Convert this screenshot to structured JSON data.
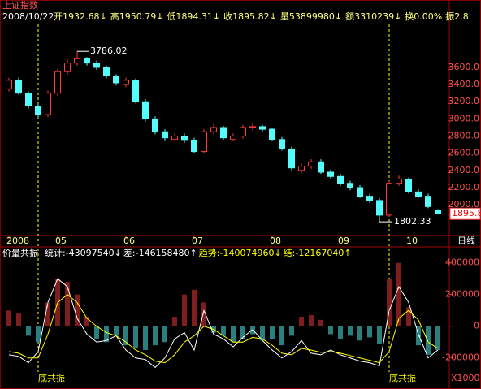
{
  "chart_data": [
    {
      "type": "candlestick",
      "title": "上证指数",
      "date": "2008/10/22",
      "info": [
        "开1932.68↓",
        "高1950.79↓",
        "低1894.31↓",
        "收1895.82↓",
        "量53899980↓",
        "额3310239↓",
        "换0.00%",
        "振2.8"
      ],
      "categories": [
        "2008",
        null,
        null,
        null,
        null,
        "05",
        null,
        null,
        null,
        null,
        null,
        null,
        "06",
        null,
        null,
        null,
        null,
        null,
        null,
        "07",
        null,
        null,
        null,
        null,
        null,
        null,
        null,
        "08",
        null,
        null,
        null,
        null,
        null,
        null,
        "09",
        null,
        null,
        null,
        null,
        null,
        null,
        "10",
        null,
        null,
        null
      ],
      "open": [
        3350,
        3450,
        3300,
        3150,
        3050,
        3300,
        3550,
        3650,
        3700,
        3650,
        3600,
        3500,
        3400,
        3450,
        3200,
        3000,
        2850,
        2760,
        2800,
        2750,
        2620,
        2850,
        2900,
        2760,
        2800,
        2900,
        2910,
        2880,
        2760,
        2650,
        2400,
        2450,
        2500,
        2380,
        2330,
        2250,
        2200,
        2100,
        2050,
        1880,
        2250,
        2300,
        2150,
        2100,
        1932.68
      ],
      "high": [
        3480,
        3480,
        3320,
        3180,
        3330,
        3580,
        3690,
        3786.02,
        3720,
        3680,
        3620,
        3520,
        3480,
        3470,
        3230,
        3030,
        2880,
        2830,
        2830,
        2780,
        2880,
        2940,
        2920,
        2830,
        2930,
        2950,
        2930,
        2900,
        2790,
        2680,
        2480,
        2530,
        2530,
        2410,
        2360,
        2280,
        2230,
        2130,
        2080,
        2280,
        2340,
        2320,
        2180,
        2130,
        1950.79
      ],
      "low": [
        3320,
        3280,
        3120,
        3010,
        3020,
        3270,
        3520,
        3620,
        3620,
        3570,
        3470,
        3390,
        3370,
        3180,
        2970,
        2820,
        2740,
        2740,
        2720,
        2600,
        2600,
        2820,
        2750,
        2740,
        2770,
        2870,
        2850,
        2740,
        2630,
        2400,
        2370,
        2420,
        2360,
        2300,
        2220,
        2170,
        2080,
        2020,
        1802.33,
        1860,
        2220,
        2130,
        2080,
        1960,
        1894.31
      ],
      "close": [
        3450,
        3300,
        3150,
        3050,
        3300,
        3550,
        3650,
        3700,
        3650,
        3600,
        3500,
        3420,
        3450,
        3200,
        3000,
        2850,
        2780,
        2800,
        2750,
        2620,
        2850,
        2900,
        2780,
        2800,
        2900,
        2910,
        2880,
        2760,
        2650,
        2430,
        2450,
        2500,
        2380,
        2330,
        2250,
        2200,
        2100,
        2050,
        1880,
        2250,
        2300,
        2150,
        2100,
        1980,
        1895.82
      ],
      "up_color": "#ff3c3c",
      "down_color": "#54fcfc",
      "max_label": 3786.02,
      "min_label": 1802.33,
      "last_price": {
        "value": 1895.82,
        "label": "1895.8"
      },
      "period": "日线",
      "ylim": [
        1690,
        4100
      ],
      "yticks": [
        {
          "value": 2000,
          "label": "2000.0"
        },
        {
          "value": 2200,
          "label": "2200.0"
        },
        {
          "value": 2400,
          "label": "2400.0"
        },
        {
          "value": 2600,
          "label": "2600.0"
        },
        {
          "value": 2800,
          "label": "2800.0"
        },
        {
          "value": 3000,
          "label": "3000.0"
        },
        {
          "value": 3200,
          "label": "3200.0"
        },
        {
          "value": 3400,
          "label": "3400.0"
        },
        {
          "value": 3600,
          "label": "3600.0"
        }
      ]
    },
    {
      "type": "bar_line",
      "title": "价量共振",
      "legend": [
        {
          "text": "统计:-43097540↓",
          "color": "#ffffff"
        },
        {
          "text": "差:-146158480↑",
          "color": "#ffffff"
        },
        {
          "text": "趋势:-140074960↓",
          "color": "#ffff00"
        },
        {
          "text": "结:-12167040↑",
          "color": "#ffff00"
        }
      ],
      "bars": [
        100000,
        80000,
        -60000,
        -100000,
        150000,
        300000,
        280000,
        200000,
        60000,
        -80000,
        -100000,
        -60000,
        -120000,
        -140000,
        -150000,
        -120000,
        -100000,
        60000,
        200000,
        230000,
        150000,
        -40000,
        -60000,
        -100000,
        -80000,
        -50000,
        -90000,
        -80000,
        -120000,
        -60000,
        60000,
        70000,
        40000,
        -50000,
        -80000,
        -60000,
        -90000,
        -70000,
        -110000,
        300000,
        400000,
        120000,
        -120000,
        -180000,
        -150000
      ],
      "bar_up_color": "#ff3c3c",
      "bar_down_color": "#54fcfc",
      "series": [
        {
          "color": "#ffffff",
          "values": [
            -180000,
            -190000,
            -230000,
            -160000,
            150000,
            300000,
            250000,
            50000,
            -50000,
            -100000,
            -90000,
            -60000,
            -150000,
            -200000,
            -210000,
            -260000,
            -200000,
            -80000,
            -40000,
            -150000,
            100000,
            -50000,
            -80000,
            -130000,
            -70000,
            -20000,
            -90000,
            -150000,
            -200000,
            -160000,
            -90000,
            -170000,
            -180000,
            -150000,
            -180000,
            -200000,
            -220000,
            -230000,
            -250000,
            100000,
            250000,
            150000,
            -50000,
            -200000,
            -150000
          ]
        },
        {
          "color": "#ffff00",
          "values": [
            -160000,
            -170000,
            -200000,
            -200000,
            -50000,
            150000,
            200000,
            150000,
            50000,
            0,
            -40000,
            -60000,
            -100000,
            -150000,
            -180000,
            -220000,
            -230000,
            -180000,
            -100000,
            -60000,
            0,
            -20000,
            -60000,
            -100000,
            -100000,
            -70000,
            -80000,
            -120000,
            -170000,
            -180000,
            -140000,
            -150000,
            -165000,
            -160000,
            -170000,
            -185000,
            -200000,
            -215000,
            -230000,
            -160000,
            50000,
            100000,
            40000,
            -100000,
            -140000
          ]
        }
      ],
      "signals": [
        {
          "label": "底共振",
          "at": 3
        },
        {
          "label": "底共振",
          "at": 39
        }
      ],
      "unit_label": "X1000",
      "ylim": [
        -350000,
        460000
      ],
      "yticks": [
        400000,
        200000,
        0,
        -200000
      ]
    }
  ]
}
